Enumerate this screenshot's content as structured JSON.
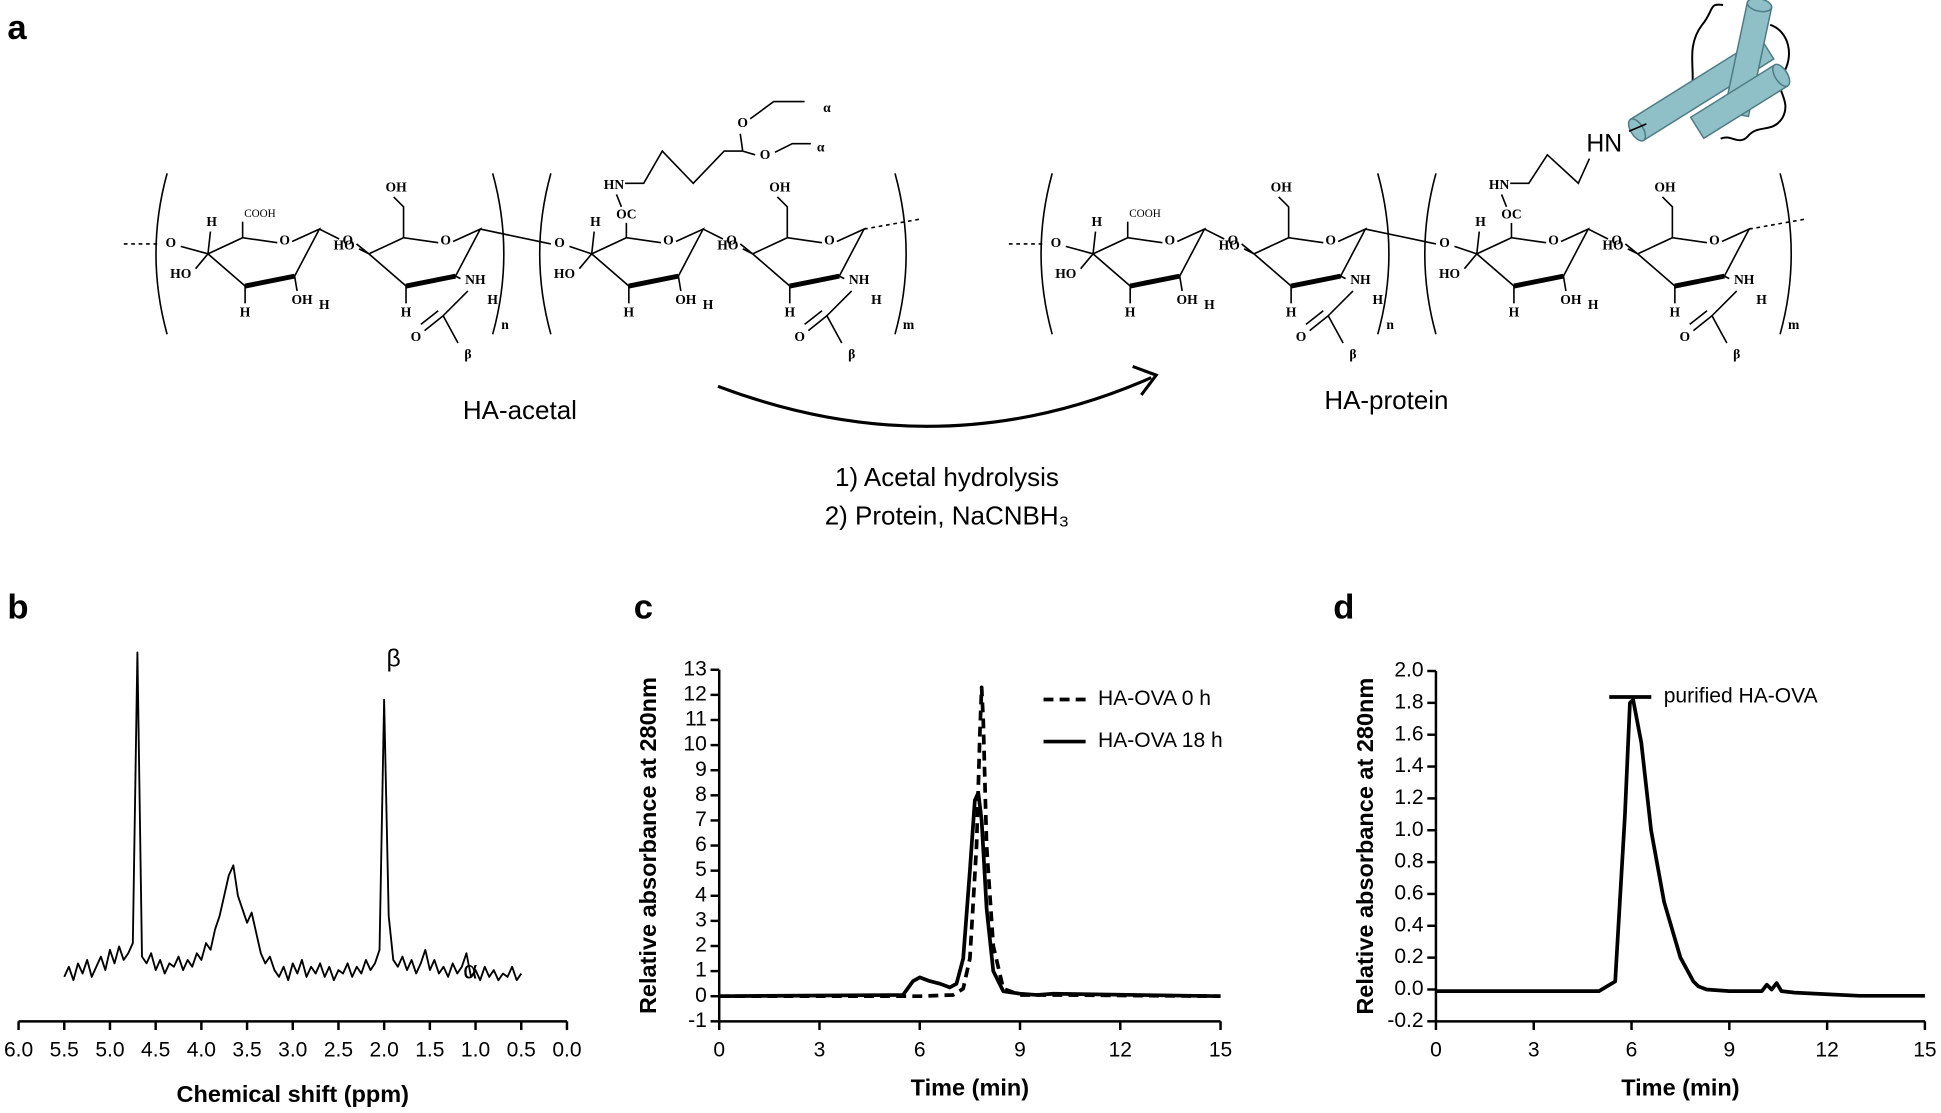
{
  "scheme": {
    "panel_label": "a",
    "left_name": "HA-acetal",
    "right_name": "HA-protein",
    "steps": [
      "1) Acetal hydrolysis",
      "2) Protein, NaCNBH₃"
    ],
    "labels": {
      "cooh": "COOH",
      "ho": "HO",
      "oh": "OH",
      "h": "H",
      "o": "O",
      "nh": "NH",
      "hn": "HN",
      "oc": "OC",
      "beta": "β",
      "alpha": "α",
      "n": "n",
      "m": "m"
    }
  },
  "chart_data": [
    {
      "type": "line",
      "panel_label": "b",
      "xlabel": "Chemical shift (ppm)",
      "annotations": [
        "β",
        "α"
      ],
      "color": "#000000",
      "xlim": [
        6.0,
        0.0
      ],
      "xticks": [
        {
          "value": 6,
          "label": "6.0"
        },
        5.5,
        {
          "value": 5,
          "label": "5.0"
        },
        4.5,
        {
          "value": 4,
          "label": "4.0"
        },
        3.5,
        {
          "value": 3,
          "label": "3.0"
        },
        2.5,
        {
          "value": 2,
          "label": "2.0"
        },
        1.5,
        {
          "value": 1,
          "label": "1.0"
        },
        0.5,
        {
          "value": 0,
          "label": "0.0"
        }
      ],
      "x": [
        5.5,
        5.45,
        5.4,
        5.35,
        5.3,
        5.25,
        5.2,
        5.15,
        5.1,
        5.05,
        5.0,
        4.95,
        4.9,
        4.85,
        4.8,
        4.75,
        4.7,
        4.65,
        4.6,
        4.55,
        4.5,
        4.45,
        4.4,
        4.35,
        4.3,
        4.25,
        4.2,
        4.15,
        4.1,
        4.05,
        4.0,
        3.95,
        3.9,
        3.85,
        3.8,
        3.75,
        3.7,
        3.65,
        3.6,
        3.55,
        3.5,
        3.45,
        3.4,
        3.35,
        3.3,
        3.25,
        3.2,
        3.15,
        3.1,
        3.05,
        3.0,
        2.95,
        2.9,
        2.85,
        2.8,
        2.75,
        2.7,
        2.65,
        2.6,
        2.55,
        2.5,
        2.45,
        2.4,
        2.35,
        2.3,
        2.25,
        2.2,
        2.15,
        2.1,
        2.05,
        2.0,
        1.95,
        1.9,
        1.85,
        1.8,
        1.75,
        1.7,
        1.65,
        1.6,
        1.55,
        1.5,
        1.45,
        1.4,
        1.35,
        1.3,
        1.25,
        1.2,
        1.15,
        1.1,
        1.05,
        1.0,
        0.95,
        0.9,
        0.85,
        0.8,
        0.75,
        0.7,
        0.65,
        0.6,
        0.55,
        0.5
      ],
      "values": [
        4,
        7,
        3,
        8,
        5,
        9,
        4,
        7,
        10,
        6,
        12,
        8,
        13,
        9,
        11,
        14,
        100,
        10,
        8,
        11,
        6,
        9,
        5,
        8,
        7,
        10,
        6,
        9,
        7,
        11,
        9,
        14,
        12,
        18,
        22,
        28,
        34,
        37,
        28,
        24,
        20,
        23,
        17,
        11,
        8,
        10,
        6,
        4,
        7,
        3,
        8,
        5,
        9,
        4,
        7,
        5,
        8,
        4,
        7,
        3,
        6,
        5,
        8,
        4,
        7,
        5,
        9,
        6,
        8,
        12,
        86,
        22,
        9,
        7,
        10,
        6,
        9,
        5,
        8,
        12,
        6,
        9,
        5,
        7,
        4,
        8,
        5,
        7,
        11,
        4,
        6,
        3,
        7,
        4,
        6,
        3,
        5,
        4,
        7,
        3,
        5
      ]
    },
    {
      "type": "line",
      "panel_label": "c",
      "xlabel": "Time (min)",
      "ylabel": "Relative absorbance at 280nm",
      "xlim": [
        0,
        15
      ],
      "xticks": [
        0,
        3,
        6,
        9,
        12,
        15
      ],
      "ylim": [
        -1,
        13
      ],
      "yticks": [
        -1,
        0,
        1,
        2,
        3,
        4,
        5,
        6,
        7,
        8,
        9,
        10,
        11,
        12,
        13
      ],
      "legend": "upper right",
      "series": [
        {
          "name": "HA-OVA 0 h",
          "color": "#000000",
          "line_style": "dashed",
          "x": [
            0,
            6,
            7,
            7.3,
            7.5,
            7.7,
            7.8,
            7.85,
            7.9,
            8.0,
            8.2,
            8.5,
            9,
            10,
            15
          ],
          "values": [
            0,
            0,
            0.05,
            0.3,
            1.5,
            6,
            10.5,
            12.3,
            11,
            6,
            2,
            0.3,
            0.05,
            0.05,
            0
          ]
        },
        {
          "name": "HA-OVA 18 h",
          "color": "#000000",
          "line_style": "solid",
          "x": [
            0,
            5.5,
            5.8,
            6,
            6.3,
            6.6,
            6.9,
            7.1,
            7.3,
            7.5,
            7.65,
            7.75,
            7.85,
            8.0,
            8.2,
            8.5,
            9,
            9.5,
            10,
            15
          ],
          "values": [
            0,
            0.05,
            0.6,
            0.75,
            0.6,
            0.5,
            0.35,
            0.5,
            1.5,
            5,
            7.8,
            8.1,
            7,
            3.5,
            1,
            0.2,
            0.1,
            0.05,
            0.1,
            0
          ]
        }
      ]
    },
    {
      "type": "line",
      "panel_label": "d",
      "xlabel": "Time (min)",
      "ylabel": "Relative absorbance at 280nm",
      "xlim": [
        0,
        15
      ],
      "xticks": [
        0,
        3,
        6,
        9,
        12,
        15
      ],
      "ylim": [
        -0.2,
        2.0
      ],
      "yticks": [
        -0.2,
        {
          "value": 0,
          "label": "0.0"
        },
        0.2,
        0.4,
        0.6,
        0.8,
        {
          "value": 1,
          "label": "1.0"
        },
        1.2,
        1.4,
        1.6,
        1.8,
        {
          "value": 2,
          "label": "2.0"
        }
      ],
      "legend": "upper right",
      "series": [
        {
          "name": "purified HA-OVA",
          "color": "#000000",
          "line_style": "solid",
          "x": [
            0,
            3,
            5,
            5.5,
            5.8,
            5.95,
            6.05,
            6.3,
            6.6,
            7,
            7.5,
            7.9,
            8.05,
            8.3,
            9,
            10,
            10.15,
            10.3,
            10.45,
            10.6,
            11,
            12,
            13,
            15
          ],
          "values": [
            -0.01,
            -0.01,
            -0.01,
            0.05,
            1.1,
            1.8,
            1.82,
            1.55,
            1.0,
            0.55,
            0.2,
            0.05,
            0.02,
            0,
            -0.01,
            -0.01,
            0.03,
            0.0,
            0.04,
            -0.01,
            -0.02,
            -0.03,
            -0.04,
            -0.04
          ]
        }
      ]
    }
  ]
}
